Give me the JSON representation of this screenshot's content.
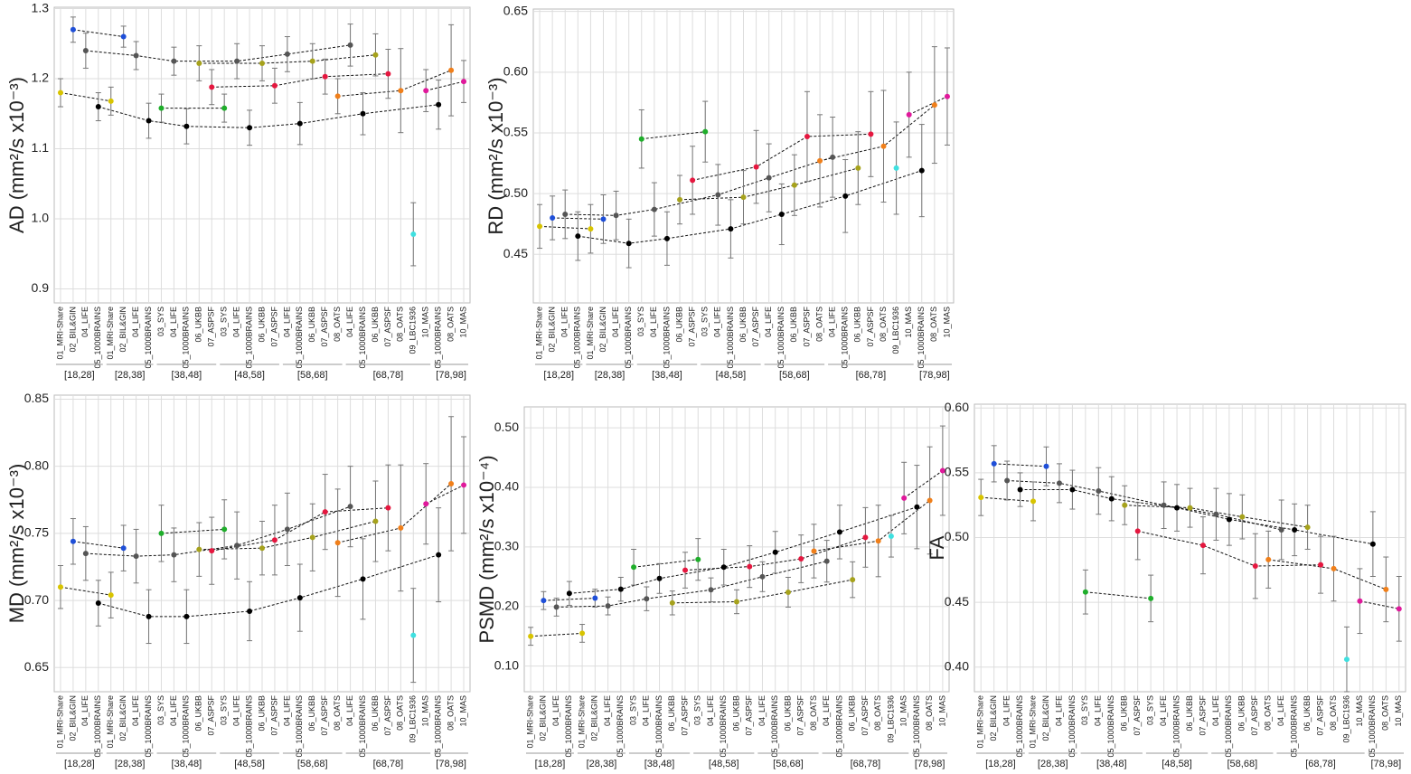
{
  "chart_data": [
    {
      "type": "errorbar",
      "ylabel": "AD (mm²/s x10⁻³)",
      "ylim": [
        0.88,
        1.302
      ],
      "yticks": [
        {
          "value": 0.9,
          "label": "0.9"
        },
        {
          "value": 1.0,
          "label": "1.0"
        },
        1.1,
        1.2,
        1.3
      ],
      "groups": [
        {
          "label": "[18,28]",
          "categories": [
            "01_MRI-Share",
            "02_BIL&GIN",
            "04_LIFE",
            "05_1000BRAINS"
          ]
        },
        {
          "label": "[28,38]",
          "categories": [
            "01_MRI-Share",
            "02_BIL&GIN",
            "04_LIFE",
            "05_1000BRAINS"
          ]
        },
        {
          "label": "[38,48]",
          "categories": [
            "03_SYS",
            "04_LIFE",
            "05_1000BRAINS",
            "06_UKBB",
            "07_ASPSF"
          ]
        },
        {
          "label": "[48,58]",
          "categories": [
            "03_SYS",
            "04_LIFE",
            "05_1000BRAINS",
            "06_UKBB",
            "07_ASPSF"
          ]
        },
        {
          "label": "[58,68]",
          "categories": [
            "04_LIFE",
            "05_1000BRAINS",
            "06_UKBB",
            "07_ASPSF",
            "08_OATS"
          ]
        },
        {
          "label": "[68,78]",
          "categories": [
            "04_LIFE",
            "05_1000BRAINS",
            "06_UKBB",
            "07_ASPSF",
            "08_OATS",
            "09_LBC1936",
            "10_MAS"
          ]
        },
        {
          "label": "[78,98]",
          "categories": [
            "05_1000BRAINS",
            "08_OATS",
            "10_MAS"
          ]
        }
      ],
      "colors": [
        "#d8c400",
        "#1f4fd8",
        "#555555",
        "#000000",
        "#d8c400",
        "#1f4fd8",
        "#555555",
        "#000000",
        "#1fae2b",
        "#555555",
        "#000000",
        "#a6a21c",
        "#e5173f",
        "#1fae2b",
        "#555555",
        "#000000",
        "#a6a21c",
        "#e5173f",
        "#555555",
        "#000000",
        "#a6a21c",
        "#e5173f",
        "#f07f1a",
        "#555555",
        "#000000",
        "#a6a21c",
        "#e5173f",
        "#f07f1a",
        "#3fe0e0",
        "#e0199b",
        "#000000",
        "#f07f1a",
        "#e0199b"
      ],
      "values": [
        1.18,
        1.27,
        1.24,
        1.16,
        1.168,
        1.26,
        1.233,
        1.14,
        1.158,
        1.225,
        1.132,
        1.222,
        1.188,
        1.158,
        1.225,
        1.13,
        1.222,
        1.19,
        1.235,
        1.136,
        1.225,
        1.203,
        1.175,
        1.248,
        1.15,
        1.234,
        1.207,
        1.183,
        0.978,
        1.183,
        1.163,
        1.212,
        1.196
      ],
      "errors": [
        0.02,
        0.018,
        0.025,
        0.02,
        0.02,
        0.015,
        0.02,
        0.025,
        0.02,
        0.02,
        0.025,
        0.025,
        0.025,
        0.02,
        0.025,
        0.025,
        0.025,
        0.025,
        0.025,
        0.03,
        0.025,
        0.025,
        0.025,
        0.03,
        0.03,
        0.03,
        0.035,
        0.06,
        0.045,
        0.03,
        0.035,
        0.065,
        0.03
      ]
    },
    {
      "type": "errorbar",
      "ylabel": "RD (mm²/s x10⁻³)",
      "ylim": [
        0.41,
        0.652
      ],
      "yticks": [
        0.45,
        {
          "value": 0.5,
          "label": "0.50"
        },
        0.55,
        {
          "value": 0.6,
          "label": "0.60"
        },
        0.65
      ],
      "groups": [
        {
          "label": "[18,28]",
          "categories": [
            "01_MRI-Share",
            "02_BIL&GIN",
            "04_LIFE",
            "05_1000BRAINS"
          ]
        },
        {
          "label": "[28,38]",
          "categories": [
            "01_MRI-Share",
            "02_BIL&GIN",
            "04_LIFE",
            "05_1000BRAINS"
          ]
        },
        {
          "label": "[38,48]",
          "categories": [
            "03_SYS",
            "04_LIFE",
            "05_1000BRAINS",
            "06_UKBB",
            "07_ASPSF"
          ]
        },
        {
          "label": "[48,58]",
          "categories": [
            "03_SYS",
            "04_LIFE",
            "05_1000BRAINS",
            "06_UKBB",
            "07_ASPSF"
          ]
        },
        {
          "label": "[58,68]",
          "categories": [
            "04_LIFE",
            "05_1000BRAINS",
            "06_UKBB",
            "07_ASPSF",
            "08_OATS"
          ]
        },
        {
          "label": "[68,78]",
          "categories": [
            "04_LIFE",
            "05_1000BRAINS",
            "06_UKBB",
            "07_ASPSF",
            "08_OATS",
            "09_LBC1936",
            "10_MAS"
          ]
        },
        {
          "label": "[78,98]",
          "categories": [
            "05_1000BRAINS",
            "08_OATS",
            "10_MAS"
          ]
        }
      ],
      "colors": [
        "#d8c400",
        "#1f4fd8",
        "#555555",
        "#000000",
        "#d8c400",
        "#1f4fd8",
        "#555555",
        "#000000",
        "#1fae2b",
        "#555555",
        "#000000",
        "#a6a21c",
        "#e5173f",
        "#1fae2b",
        "#555555",
        "#000000",
        "#a6a21c",
        "#e5173f",
        "#555555",
        "#000000",
        "#a6a21c",
        "#e5173f",
        "#f07f1a",
        "#555555",
        "#000000",
        "#a6a21c",
        "#e5173f",
        "#f07f1a",
        "#3fe0e0",
        "#e0199b",
        "#000000",
        "#f07f1a",
        "#e0199b"
      ],
      "values": [
        0.473,
        0.48,
        0.483,
        0.465,
        0.471,
        0.479,
        0.482,
        0.459,
        0.545,
        0.487,
        0.463,
        0.495,
        0.511,
        0.551,
        0.499,
        0.471,
        0.497,
        0.522,
        0.513,
        0.483,
        0.507,
        0.547,
        0.527,
        0.53,
        0.498,
        0.521,
        0.549,
        0.539,
        0.521,
        0.565,
        0.519,
        0.573,
        0.58
      ],
      "errors": [
        0.018,
        0.018,
        0.02,
        0.02,
        0.02,
        0.02,
        0.02,
        0.02,
        0.024,
        0.022,
        0.022,
        0.02,
        0.028,
        0.025,
        0.025,
        0.024,
        0.022,
        0.03,
        0.028,
        0.025,
        0.025,
        0.037,
        0.038,
        0.033,
        0.03,
        0.03,
        0.035,
        0.046,
        0.038,
        0.035,
        0.038,
        0.048,
        0.04
      ]
    },
    {
      "type": "errorbar",
      "ylabel": "MD (mm²/s x10⁻³)",
      "ylim": [
        0.632,
        0.853
      ],
      "yticks": [
        0.65,
        {
          "value": 0.7,
          "label": "0.70"
        },
        0.75,
        {
          "value": 0.8,
          "label": "0.80"
        },
        0.85
      ],
      "groups": [
        {
          "label": "[18,28]",
          "categories": [
            "01_MRI-Share",
            "02_BIL&GIN",
            "04_LIFE",
            "05_1000BRAINS"
          ]
        },
        {
          "label": "[28,38]",
          "categories": [
            "01_MRI-Share",
            "02_BIL&GIN",
            "04_LIFE",
            "05_1000BRAINS"
          ]
        },
        {
          "label": "[38,48]",
          "categories": [
            "03_SYS",
            "04_LIFE",
            "05_1000BRAINS",
            "06_UKBB",
            "07_ASPSF"
          ]
        },
        {
          "label": "[48,58]",
          "categories": [
            "03_SYS",
            "04_LIFE",
            "05_1000BRAINS",
            "06_UKBB",
            "07_ASPSF"
          ]
        },
        {
          "label": "[58,68]",
          "categories": [
            "04_LIFE",
            "05_1000BRAINS",
            "06_UKBB",
            "07_ASPSF",
            "08_OATS"
          ]
        },
        {
          "label": "[68,78]",
          "categories": [
            "04_LIFE",
            "05_1000BRAINS",
            "06_UKBB",
            "07_ASPSF",
            "08_OATS",
            "09_LBC1936",
            "10_MAS"
          ]
        },
        {
          "label": "[78,98]",
          "categories": [
            "05_1000BRAINS",
            "08_OATS",
            "10_MAS"
          ]
        }
      ],
      "colors": [
        "#d8c400",
        "#1f4fd8",
        "#555555",
        "#000000",
        "#d8c400",
        "#1f4fd8",
        "#555555",
        "#000000",
        "#1fae2b",
        "#555555",
        "#000000",
        "#a6a21c",
        "#e5173f",
        "#1fae2b",
        "#555555",
        "#000000",
        "#a6a21c",
        "#e5173f",
        "#555555",
        "#000000",
        "#a6a21c",
        "#e5173f",
        "#f07f1a",
        "#555555",
        "#000000",
        "#a6a21c",
        "#e5173f",
        "#f07f1a",
        "#3fe0e0",
        "#e0199b",
        "#000000",
        "#f07f1a",
        "#e0199b"
      ],
      "values": [
        0.71,
        0.744,
        0.735,
        0.698,
        0.704,
        0.739,
        0.733,
        0.688,
        0.75,
        0.734,
        0.688,
        0.738,
        0.737,
        0.753,
        0.741,
        0.692,
        0.739,
        0.745,
        0.753,
        0.702,
        0.747,
        0.766,
        0.743,
        0.77,
        0.716,
        0.759,
        0.769,
        0.754,
        0.674,
        0.772,
        0.734,
        0.787,
        0.786
      ],
      "errors": [
        0.016,
        0.017,
        0.02,
        0.017,
        0.017,
        0.017,
        0.02,
        0.02,
        0.021,
        0.02,
        0.02,
        0.02,
        0.025,
        0.022,
        0.025,
        0.022,
        0.02,
        0.026,
        0.027,
        0.025,
        0.025,
        0.028,
        0.04,
        0.03,
        0.03,
        0.03,
        0.032,
        0.047,
        0.035,
        0.03,
        0.035,
        0.05,
        0.036
      ]
    },
    {
      "type": "errorbar",
      "ylabel": "PSMD (mm²/s x10⁻⁴)",
      "ylim": [
        0.057,
        0.535
      ],
      "yticks": [
        {
          "value": 0.1,
          "label": "0.10"
        },
        {
          "value": 0.2,
          "label": "0.20"
        },
        {
          "value": 0.3,
          "label": "0.30"
        },
        {
          "value": 0.4,
          "label": "0.40"
        },
        {
          "value": 0.5,
          "label": "0.50"
        }
      ],
      "groups": [
        {
          "label": "[18,28]",
          "categories": [
            "01_MRI-Share",
            "02_BIL&GIN",
            "04_LIFE",
            "05_1000BRAINS"
          ]
        },
        {
          "label": "[28,38]",
          "categories": [
            "01_MRI-Share",
            "02_BIL&GIN",
            "04_LIFE",
            "05_1000BRAINS"
          ]
        },
        {
          "label": "[38,48]",
          "categories": [
            "03_SYS",
            "04_LIFE",
            "05_1000BRAINS",
            "06_UKBB",
            "07_ASPSF"
          ]
        },
        {
          "label": "[48,58]",
          "categories": [
            "03_SYS",
            "04_LIFE",
            "05_1000BRAINS",
            "06_UKBB",
            "07_ASPSF"
          ]
        },
        {
          "label": "[58,68]",
          "categories": [
            "04_LIFE",
            "05_1000BRAINS",
            "06_UKBB",
            "07_ASPSF",
            "08_OATS"
          ]
        },
        {
          "label": "[68,78]",
          "categories": [
            "04_LIFE",
            "05_1000BRAINS",
            "06_UKBB",
            "07_ASPSF",
            "08_OATS",
            "09_LBC1936",
            "10_MAS"
          ]
        },
        {
          "label": "[78,98]",
          "categories": [
            "05_1000BRAINS",
            "08_OATS",
            "10_MAS"
          ]
        }
      ],
      "colors": [
        "#d8c400",
        "#1f4fd8",
        "#555555",
        "#000000",
        "#d8c400",
        "#1f4fd8",
        "#555555",
        "#000000",
        "#1fae2b",
        "#555555",
        "#000000",
        "#a6a21c",
        "#e5173f",
        "#1fae2b",
        "#555555",
        "#000000",
        "#a6a21c",
        "#e5173f",
        "#555555",
        "#000000",
        "#a6a21c",
        "#e5173f",
        "#f07f1a",
        "#555555",
        "#000000",
        "#a6a21c",
        "#e5173f",
        "#f07f1a",
        "#3fe0e0",
        "#e0199b",
        "#000000",
        "#f07f1a",
        "#e0199b"
      ],
      "values": [
        0.15,
        0.21,
        0.199,
        0.222,
        0.155,
        0.214,
        0.201,
        0.229,
        0.266,
        0.213,
        0.247,
        0.206,
        0.261,
        0.279,
        0.228,
        0.266,
        0.208,
        0.267,
        0.25,
        0.291,
        0.224,
        0.28,
        0.293,
        0.276,
        0.325,
        0.245,
        0.316,
        0.31,
        0.318,
        0.382,
        0.367,
        0.378,
        0.428
      ],
      "errors": [
        0.015,
        0.015,
        0.015,
        0.02,
        0.015,
        0.015,
        0.015,
        0.02,
        0.03,
        0.02,
        0.025,
        0.02,
        0.03,
        0.035,
        0.02,
        0.03,
        0.02,
        0.035,
        0.025,
        0.035,
        0.025,
        0.04,
        0.045,
        0.035,
        0.045,
        0.03,
        0.05,
        0.06,
        0.035,
        0.06,
        0.07,
        0.09,
        0.075
      ]
    },
    {
      "type": "errorbar",
      "ylabel": "FA",
      "ylim": [
        0.381,
        0.603
      ],
      "yticks": [
        {
          "value": 0.4,
          "label": "0.40"
        },
        0.45,
        {
          "value": 0.5,
          "label": "0.50"
        },
        0.55,
        {
          "value": 0.6,
          "label": "0.60"
        }
      ],
      "groups": [
        {
          "label": "[18,28]",
          "categories": [
            "01_MRI-Share",
            "02_BIL&GIN",
            "04_LIFE",
            "05_1000BRAINS"
          ]
        },
        {
          "label": "[28,38]",
          "categories": [
            "01_MRI-Share",
            "02_BIL&GIN",
            "04_LIFE",
            "05_1000BRAINS"
          ]
        },
        {
          "label": "[38,48]",
          "categories": [
            "03_SYS",
            "04_LIFE",
            "05_1000BRAINS",
            "06_UKBB",
            "07_ASPSF"
          ]
        },
        {
          "label": "[48,58]",
          "categories": [
            "03_SYS",
            "04_LIFE",
            "05_1000BRAINS",
            "06_UKBB",
            "07_ASPSF"
          ]
        },
        {
          "label": "[58,68]",
          "categories": [
            "04_LIFE",
            "05_1000BRAINS",
            "06_UKBB",
            "07_ASPSF",
            "08_OATS"
          ]
        },
        {
          "label": "[68,78]",
          "categories": [
            "04_LIFE",
            "05_1000BRAINS",
            "06_UKBB",
            "07_ASPSF",
            "08_OATS",
            "09_LBC1936",
            "10_MAS"
          ]
        },
        {
          "label": "[78,98]",
          "categories": [
            "05_1000BRAINS",
            "08_OATS",
            "10_MAS"
          ]
        }
      ],
      "colors": [
        "#d8c400",
        "#1f4fd8",
        "#555555",
        "#000000",
        "#d8c400",
        "#1f4fd8",
        "#555555",
        "#000000",
        "#1fae2b",
        "#555555",
        "#000000",
        "#a6a21c",
        "#e5173f",
        "#1fae2b",
        "#555555",
        "#000000",
        "#a6a21c",
        "#e5173f",
        "#555555",
        "#000000",
        "#a6a21c",
        "#e5173f",
        "#f07f1a",
        "#555555",
        "#000000",
        "#a6a21c",
        "#e5173f",
        "#f07f1a",
        "#3fe0e0",
        "#e0199b",
        "#000000",
        "#f07f1a",
        "#e0199b"
      ],
      "values": [
        0.531,
        0.557,
        0.544,
        0.537,
        0.528,
        0.555,
        0.542,
        0.537,
        0.458,
        0.536,
        0.53,
        0.525,
        0.505,
        0.453,
        0.525,
        0.523,
        0.523,
        0.494,
        0.518,
        0.514,
        0.516,
        0.478,
        0.483,
        0.506,
        0.506,
        0.508,
        0.479,
        0.476,
        0.406,
        0.451,
        0.495,
        0.46,
        0.445
      ],
      "errors": [
        0.014,
        0.014,
        0.015,
        0.013,
        0.015,
        0.015,
        0.015,
        0.015,
        0.017,
        0.018,
        0.017,
        0.015,
        0.022,
        0.018,
        0.018,
        0.018,
        0.015,
        0.022,
        0.02,
        0.02,
        0.017,
        0.025,
        0.022,
        0.023,
        0.02,
        0.017,
        0.022,
        0.025,
        0.025,
        0.025,
        0.025,
        0.025,
        0.025
      ]
    }
  ]
}
